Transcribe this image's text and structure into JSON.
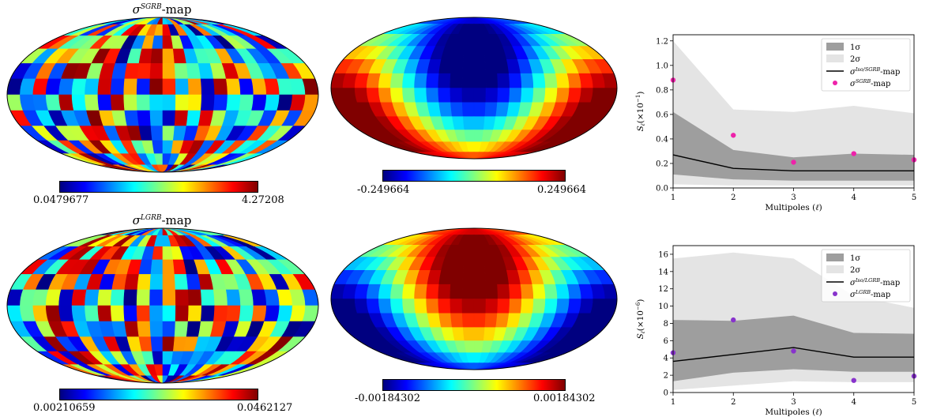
{
  "maps": [
    {
      "title_sym": "σ",
      "title_sup": "SGRB",
      "title_suffix": "-map",
      "cb_min": "0.0479677",
      "cb_max": "4.27208",
      "pattern": "random",
      "seed": 11
    },
    {
      "title_sym": "",
      "title_sup": "",
      "title_suffix": "",
      "cb_min": "-0.249664",
      "cb_max": "0.249664",
      "pattern": "dipole_south",
      "seed": 0
    },
    {
      "title_sym": "σ",
      "title_sup": "LGRB",
      "title_suffix": "-map",
      "cb_min": "0.00210659",
      "cb_max": "0.0462127",
      "pattern": "random",
      "seed": 29
    },
    {
      "title_sym": "",
      "title_sup": "",
      "title_suffix": "",
      "cb_min": "-0.00184302",
      "cb_max": "0.00184302",
      "pattern": "dipole_north",
      "seed": 0
    }
  ],
  "chart_data": [
    {
      "type": "line",
      "x": [
        1,
        2,
        3,
        4,
        5
      ],
      "xticks": [
        "1",
        "2",
        "3",
        "4",
        "5"
      ],
      "xlabel_text": "Multipoles (",
      "xlabel_sym": "ℓ",
      "xlabel_end": ")",
      "ylabel_main": "S",
      "ylabel_sub": "ℓ",
      "ylabel_rest": "(×10",
      "ylabel_exp": "−1",
      "ylabel_close": ")",
      "ylim": [
        0,
        1.25
      ],
      "yticks": [
        "0.0",
        "0.2",
        "0.4",
        "0.6",
        "0.8",
        "1.0",
        "1.2"
      ],
      "ytick_values": [
        0,
        0.2,
        0.4,
        0.6,
        0.8,
        1.0,
        1.2
      ],
      "band_2sigma": {
        "lower": [
          0.03,
          0.02,
          0.02,
          0.02,
          0.02
        ],
        "upper": [
          1.2,
          0.64,
          0.62,
          0.67,
          0.61
        ]
      },
      "band_1sigma": {
        "lower": [
          0.11,
          0.07,
          0.06,
          0.06,
          0.06
        ],
        "upper": [
          0.62,
          0.31,
          0.25,
          0.28,
          0.27
        ]
      },
      "median": [
        0.27,
        0.16,
        0.14,
        0.14,
        0.14
      ],
      "points": [
        0.88,
        0.43,
        0.21,
        0.28,
        0.23
      ],
      "point_color": "#ee22aa",
      "legend": {
        "one_sigma": "1σ",
        "two_sigma": "2σ",
        "line_sym": "σ",
        "line_sup": "Iso/SGRB",
        "line_suffix": "-map",
        "point_sym": "σ",
        "point_sup": "SGRB",
        "point_suffix": "-map"
      }
    },
    {
      "type": "line",
      "x": [
        1,
        2,
        3,
        4,
        5
      ],
      "xticks": [
        "1",
        "2",
        "3",
        "4",
        "5"
      ],
      "xlabel_text": "Multipoles (",
      "xlabel_sym": "ℓ",
      "xlabel_end": ")",
      "ylabel_main": "S",
      "ylabel_sub": "ℓ",
      "ylabel_rest": "(×10",
      "ylabel_exp": "−6",
      "ylabel_close": ")",
      "ylim": [
        0,
        17
      ],
      "yticks": [
        "0",
        "2",
        "4",
        "6",
        "8",
        "10",
        "12",
        "14",
        "16"
      ],
      "ytick_values": [
        0,
        2,
        4,
        6,
        8,
        10,
        12,
        14,
        16
      ],
      "band_2sigma": {
        "lower": [
          0.3,
          0.8,
          1.3,
          1.2,
          1.2
        ],
        "upper": [
          15.5,
          16.2,
          15.5,
          11.2,
          9.8
        ]
      },
      "band_1sigma": {
        "lower": [
          1.3,
          2.3,
          2.7,
          2.4,
          2.4
        ],
        "upper": [
          8.4,
          8.3,
          8.9,
          6.9,
          6.8
        ]
      },
      "median": [
        3.6,
        4.4,
        5.2,
        4.1,
        4.1
      ],
      "points": [
        4.6,
        8.4,
        4.8,
        1.4,
        1.9
      ],
      "point_color": "#8833cc",
      "legend": {
        "one_sigma": "1σ",
        "two_sigma": "2σ",
        "line_sym": "σ",
        "line_sup": "Iso/LGRB",
        "line_suffix": "-map",
        "point_sym": "σ",
        "point_sup": "LGRB",
        "point_suffix": "-map"
      }
    }
  ]
}
